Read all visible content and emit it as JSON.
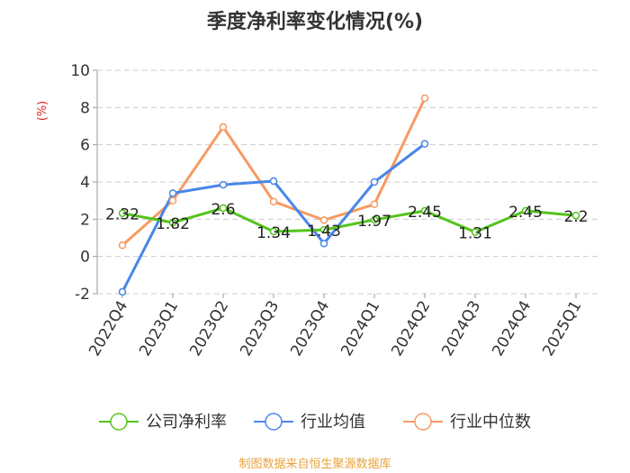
{
  "title": "季度净利率变化情况(%)",
  "source": "制图数据来自恒生聚源数据库",
  "chart_data": {
    "type": "line",
    "title": "季度净利率变化情况(%)",
    "ylabel": "(%)",
    "xlabel": "",
    "categories": [
      "2022Q4",
      "2023Q1",
      "2023Q2",
      "2023Q3",
      "2023Q4",
      "2024Q1",
      "2024Q2",
      "2024Q3",
      "2024Q4",
      "2025Q1"
    ],
    "ylim": [
      -2,
      10
    ],
    "yticks": [
      -2,
      0,
      2,
      4,
      6,
      8,
      10
    ],
    "grid": true,
    "legend_position": "bottom",
    "series": [
      {
        "name": "公司净利率",
        "color": "#52c41a",
        "values": [
          2.32,
          1.82,
          2.6,
          1.34,
          1.43,
          1.97,
          2.45,
          1.31,
          2.45,
          2.2
        ],
        "labels": [
          "2.32",
          "1.82",
          "2.6",
          "1.34",
          "1.43",
          "1.97",
          "2.45",
          "1.31",
          "2.45",
          "2.2"
        ]
      },
      {
        "name": "行业均值",
        "color": "#4a86e8",
        "values": [
          -1.9,
          3.4,
          3.85,
          4.05,
          0.7,
          4.0,
          6.05,
          null,
          null,
          null
        ]
      },
      {
        "name": "行业中位数",
        "color": "#f79a62",
        "values": [
          0.6,
          3.0,
          6.95,
          2.95,
          1.95,
          2.8,
          8.5,
          null,
          null,
          null
        ]
      }
    ]
  }
}
